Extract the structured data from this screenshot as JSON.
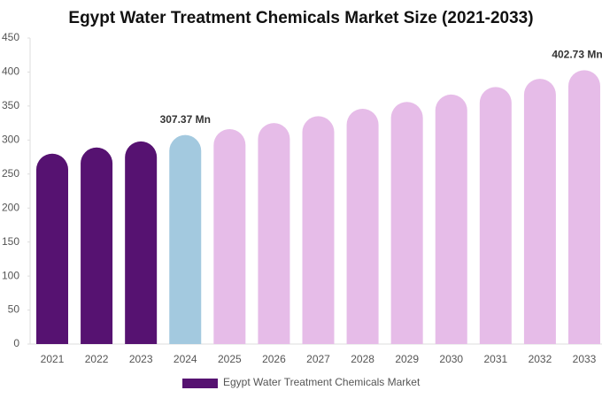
{
  "chart_data": {
    "type": "bar",
    "title": "Egypt Water Treatment Chemicals Market Size (2021-2033)",
    "categories": [
      "2021",
      "2022",
      "2023",
      "2024",
      "2025",
      "2026",
      "2027",
      "2028",
      "2029",
      "2030",
      "2031",
      "2032",
      "2033"
    ],
    "series": [
      {
        "name": "Egypt Water Treatment Chemicals Market",
        "color": "#561271",
        "colors": [
          "#561271",
          "#561271",
          "#561271",
          "#a3c9df",
          "#e6bce8",
          "#e6bce8",
          "#e6bce8",
          "#e6bce8",
          "#e6bce8",
          "#e6bce8",
          "#e6bce8",
          "#e6bce8",
          "#e6bce8"
        ],
        "values": [
          280,
          289,
          298,
          307.37,
          316,
          325,
          335,
          346,
          356,
          367,
          378,
          390,
          402.73
        ],
        "value_labels": [
          null,
          null,
          null,
          "307.37 Mn",
          null,
          null,
          null,
          null,
          null,
          null,
          null,
          null,
          "402.73 Mn"
        ]
      }
    ],
    "ylim": [
      0,
      450
    ],
    "yticks": [
      0,
      50,
      100,
      150,
      200,
      250,
      300,
      350,
      400,
      450
    ]
  }
}
